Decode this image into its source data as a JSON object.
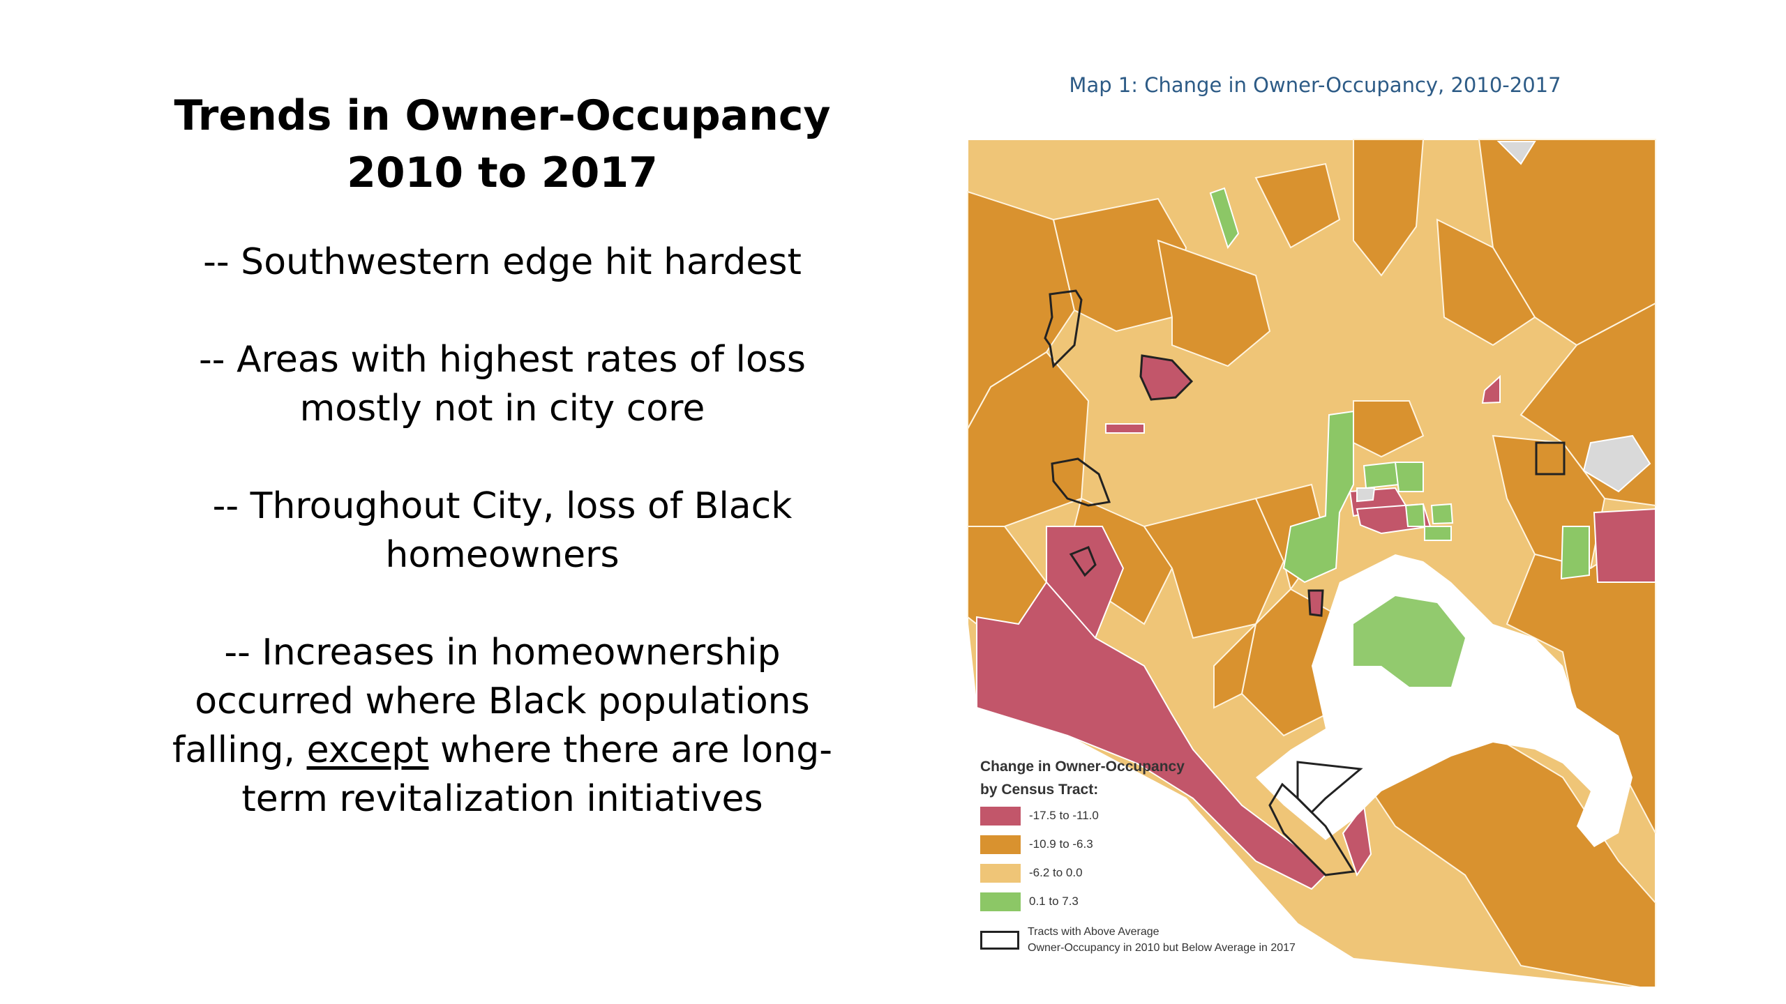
{
  "slide": {
    "title_line1": "Trends in Owner-Occupancy",
    "title_line2": "2010 to 2017",
    "bullets": [
      "-- Southwestern edge hit hardest",
      "-- Areas with highest rates of loss mostly not in city core",
      "-- Throughout City, loss of Black homeowners"
    ],
    "bullet4_part1": "-- Increases in homeownership occurred where Black populations falling,",
    "bullet4_underlined": "except",
    "bullet4_part2": "where there are long-term revitalization initiatives"
  },
  "map": {
    "title": "Map 1: Change in Owner-Occupancy, 2010-2017",
    "colors": {
      "loss_high": "#c2566a",
      "loss_mid": "#d9922f",
      "loss_low": "#efc577",
      "gain": "#8cc766",
      "no_data": "#d9d9d9",
      "water": "#ffffff",
      "outline": "#222222"
    },
    "legend": {
      "title_line1": "Change in Owner-Occupancy",
      "title_line2": "by Census Tract:",
      "items": [
        {
          "label": "-17.5 to -11.0",
          "color": "#c2566a"
        },
        {
          "label": "-10.9 to -6.3",
          "color": "#d9922f"
        },
        {
          "label": "-6.2 to 0.0",
          "color": "#efc577"
        },
        {
          "label": "0.1 to 7.3",
          "color": "#8cc766"
        }
      ],
      "outline_label_line1": "Tracts with Above Average",
      "outline_label_line2": "Owner-Occupancy in 2010 but Below Average in 2017"
    }
  }
}
